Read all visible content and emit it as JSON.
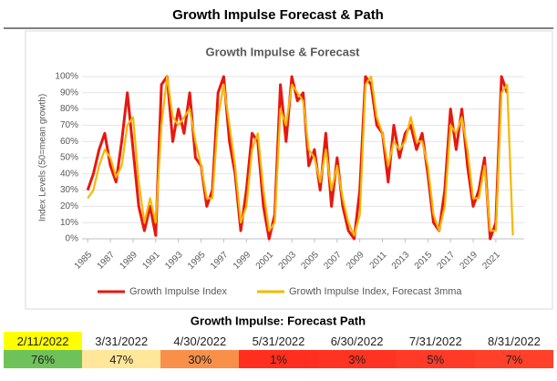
{
  "title": "Growth Impulse Forecast & Path",
  "chart_data": {
    "type": "line",
    "title": "Growth Impulse & Forecast",
    "y_label": "Index Levels (50=mean growth)",
    "x": [
      1985,
      1985.5,
      1986,
      1986.5,
      1987,
      1987.5,
      1988,
      1988.5,
      1989,
      1989.5,
      1990,
      1990.5,
      1991,
      1991.5,
      1992,
      1992.5,
      1993,
      1993.5,
      1994,
      1994.5,
      1995,
      1995.5,
      1996,
      1996.5,
      1997,
      1997.5,
      1998,
      1998.5,
      1999,
      1999.5,
      2000,
      2000.5,
      2001,
      2001.5,
      2002,
      2002.5,
      2003,
      2003.5,
      2004,
      2004.5,
      2005,
      2005.5,
      2006,
      2006.5,
      2007,
      2007.5,
      2008,
      2008.5,
      2009,
      2009.5,
      2010,
      2010.5,
      2011,
      2011.5,
      2012,
      2012.5,
      2013,
      2013.5,
      2014,
      2014.5,
      2015,
      2015.5,
      2016,
      2016.5,
      2017,
      2017.5,
      2018,
      2018.5,
      2019,
      2019.5,
      2020,
      2020.5,
      2021,
      2021.5,
      2022,
      2022.5
    ],
    "series": [
      {
        "name": "Growth Impulse Index",
        "color": "#e8170f",
        "values": [
          30,
          40,
          55,
          65,
          45,
          35,
          60,
          90,
          55,
          20,
          5,
          20,
          2,
          95,
          100,
          60,
          80,
          65,
          90,
          50,
          45,
          20,
          30,
          90,
          100,
          60,
          40,
          5,
          30,
          65,
          60,
          20,
          0,
          15,
          95,
          60,
          100,
          85,
          90,
          45,
          55,
          30,
          65,
          20,
          50,
          20,
          5,
          0,
          30,
          100,
          95,
          70,
          65,
          35,
          70,
          50,
          65,
          70,
          55,
          65,
          40,
          10,
          5,
          30,
          80,
          55,
          80,
          45,
          20,
          30,
          50,
          0,
          10,
          100,
          90,
          null
        ]
      },
      {
        "name": "Growth Impulse Index, Forecast 3mma",
        "color": "#f5b800",
        "values": [
          25,
          30,
          45,
          55,
          50,
          38,
          45,
          70,
          75,
          35,
          10,
          25,
          10,
          70,
          100,
          75,
          70,
          75,
          80,
          60,
          45,
          25,
          25,
          75,
          95,
          70,
          45,
          10,
          20,
          55,
          65,
          30,
          5,
          10,
          80,
          70,
          95,
          90,
          85,
          55,
          50,
          35,
          55,
          30,
          45,
          25,
          10,
          2,
          15,
          95,
          100,
          75,
          65,
          45,
          60,
          55,
          60,
          75,
          60,
          60,
          45,
          15,
          5,
          20,
          70,
          65,
          75,
          55,
          25,
          25,
          45,
          5,
          5,
          90,
          95,
          2
        ]
      }
    ],
    "xlim": [
      1984.5,
      2023.5
    ],
    "xticks": [
      1985,
      1987,
      1989,
      1991,
      1993,
      1995,
      1997,
      1999,
      2001,
      2003,
      2005,
      2007,
      2009,
      2011,
      2013,
      2015,
      2017,
      2019,
      2021
    ],
    "ylim": [
      0,
      100
    ],
    "yticks": [
      {
        "value": 0,
        "label": "0%"
      },
      {
        "value": 10,
        "label": "10%"
      },
      {
        "value": 20,
        "label": "20%"
      },
      {
        "value": 30,
        "label": "30%"
      },
      {
        "value": 40,
        "label": "40%"
      },
      {
        "value": 50,
        "label": "50%"
      },
      {
        "value": 60,
        "label": "60%"
      },
      {
        "value": 70,
        "label": "70%"
      },
      {
        "value": 80,
        "label": "80%"
      },
      {
        "value": 90,
        "label": "90%"
      },
      {
        "value": 100,
        "label": "100%"
      }
    ],
    "legend": "bottom"
  },
  "table": {
    "title": "Growth Impulse: Forecast Path",
    "columns": [
      "2/11/2022",
      "3/31/2022",
      "4/30/2022",
      "5/31/2022",
      "6/30/2022",
      "7/31/2022",
      "8/31/2022"
    ],
    "values": [
      "76%",
      "47%",
      "30%",
      "1%",
      "3%",
      "5%",
      "7%"
    ],
    "header_colors": [
      "#ffff00",
      "#ffffff",
      "#ffffff",
      "#ffffff",
      "#ffffff",
      "#ffffff",
      "#ffffff"
    ],
    "colors": [
      "#6fc25a",
      "#ffe699",
      "#f8904a",
      "#ff2e1f",
      "#ff3322",
      "#ff3a26",
      "#ff4129"
    ]
  }
}
